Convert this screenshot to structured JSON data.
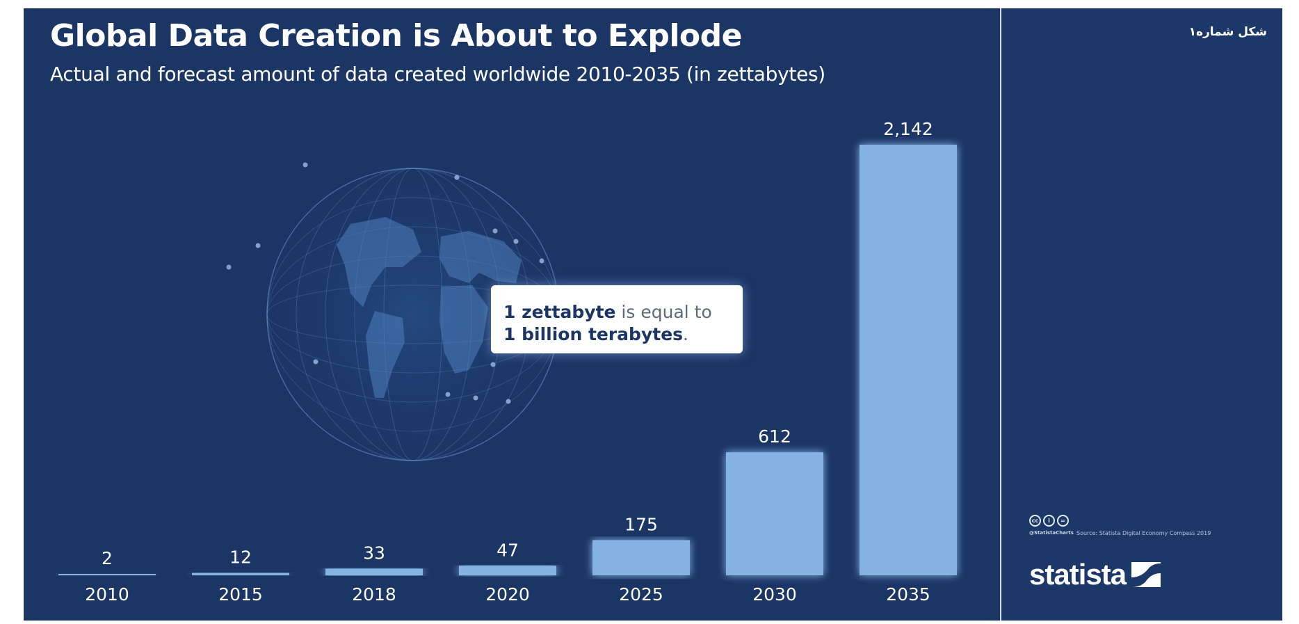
{
  "chart_data": {
    "type": "bar",
    "title": "Global Data Creation is About to Explode",
    "subtitle": "Actual and forecast amount of data created worldwide 2010-2035 (in zettabytes)",
    "categories": [
      "2010",
      "2015",
      "2018",
      "2020",
      "2025",
      "2030",
      "2035"
    ],
    "values": [
      2,
      12,
      33,
      47,
      175,
      612,
      2142
    ],
    "value_labels": [
      "2",
      "12",
      "33",
      "47",
      "175",
      "612",
      "2,142"
    ],
    "ylim": [
      0,
      2142
    ],
    "grid": false,
    "colors": {
      "bar": "#85b3e3",
      "glow": "#a9d0ff",
      "background": "#1b3565",
      "text": "#ffffff"
    }
  },
  "callout": {
    "line1_bold": "1 zettabyte",
    "line1_rest": " is equal to",
    "line2_bold": "1 billion terabytes",
    "line2_rest": "."
  },
  "side_panel": {
    "figure_label": "شکل شماره۱",
    "license_icons": [
      "cc",
      "i",
      "="
    ],
    "credit": "@StatistaCharts",
    "source": "Source: Statista Digital Economy Compass 2019",
    "logo_text": "statista"
  }
}
